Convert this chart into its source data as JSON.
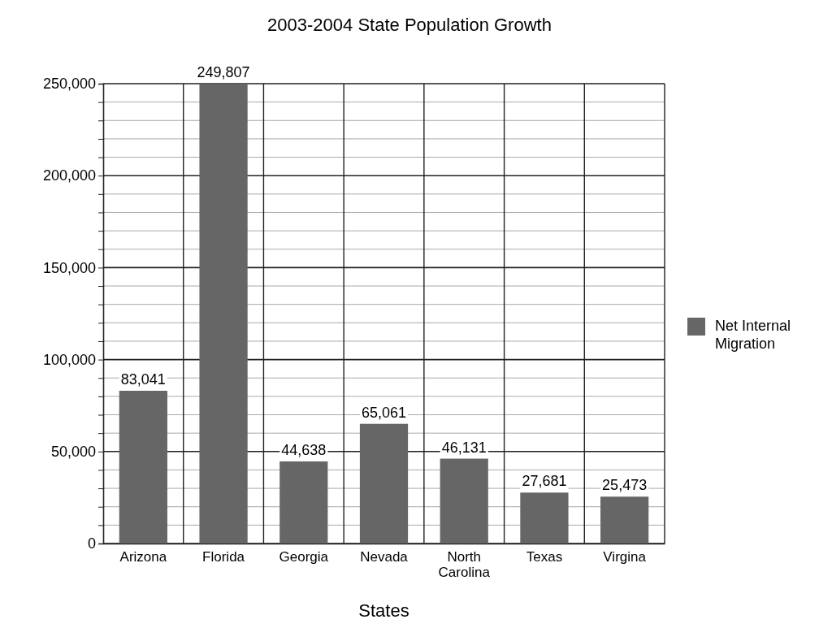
{
  "chart_data": {
    "type": "bar",
    "title": "2003-2004 State Population Growth",
    "xlabel": "States",
    "categories": [
      "Arizona",
      "Florida",
      "Georgia",
      "Nevada",
      "North Carolina",
      "Texas",
      "Virgina"
    ],
    "series": [
      {
        "name": "Net Internal Migration",
        "color": "#666666",
        "values": [
          83041,
          249807,
          44638,
          65061,
          46131,
          27681,
          25473
        ],
        "value_labels": [
          "83,041",
          "249,807",
          "44,638",
          "65,061",
          "46,131",
          "27,681",
          "25,473"
        ]
      }
    ],
    "ylim": [
      0,
      250000
    ],
    "yticks": [
      0,
      {
        "value": 10000,
        "label": null
      },
      {
        "value": 20000,
        "label": null
      },
      {
        "value": 30000,
        "label": null
      },
      {
        "value": 40000,
        "label": null
      },
      {
        "value": 50000,
        "label": "50,000"
      },
      {
        "value": 60000,
        "label": null
      },
      {
        "value": 70000,
        "label": null
      },
      {
        "value": 80000,
        "label": null
      },
      {
        "value": 90000,
        "label": null
      },
      {
        "value": 100000,
        "label": "100,000"
      },
      {
        "value": 110000,
        "label": null
      },
      {
        "value": 120000,
        "label": null
      },
      {
        "value": 130000,
        "label": null
      },
      {
        "value": 140000,
        "label": null
      },
      {
        "value": 150000,
        "label": "150,000"
      },
      {
        "value": 160000,
        "label": null
      },
      {
        "value": 170000,
        "label": null
      },
      {
        "value": 180000,
        "label": null
      },
      {
        "value": 190000,
        "label": null
      },
      {
        "value": 200000,
        "label": "200,000"
      },
      {
        "value": 210000,
        "label": null
      },
      {
        "value": 220000,
        "label": null
      },
      {
        "value": 230000,
        "label": null
      },
      {
        "value": 240000,
        "label": null
      },
      {
        "value": 250000,
        "label": "250,000"
      }
    ],
    "grid": true,
    "legend": "right"
  }
}
